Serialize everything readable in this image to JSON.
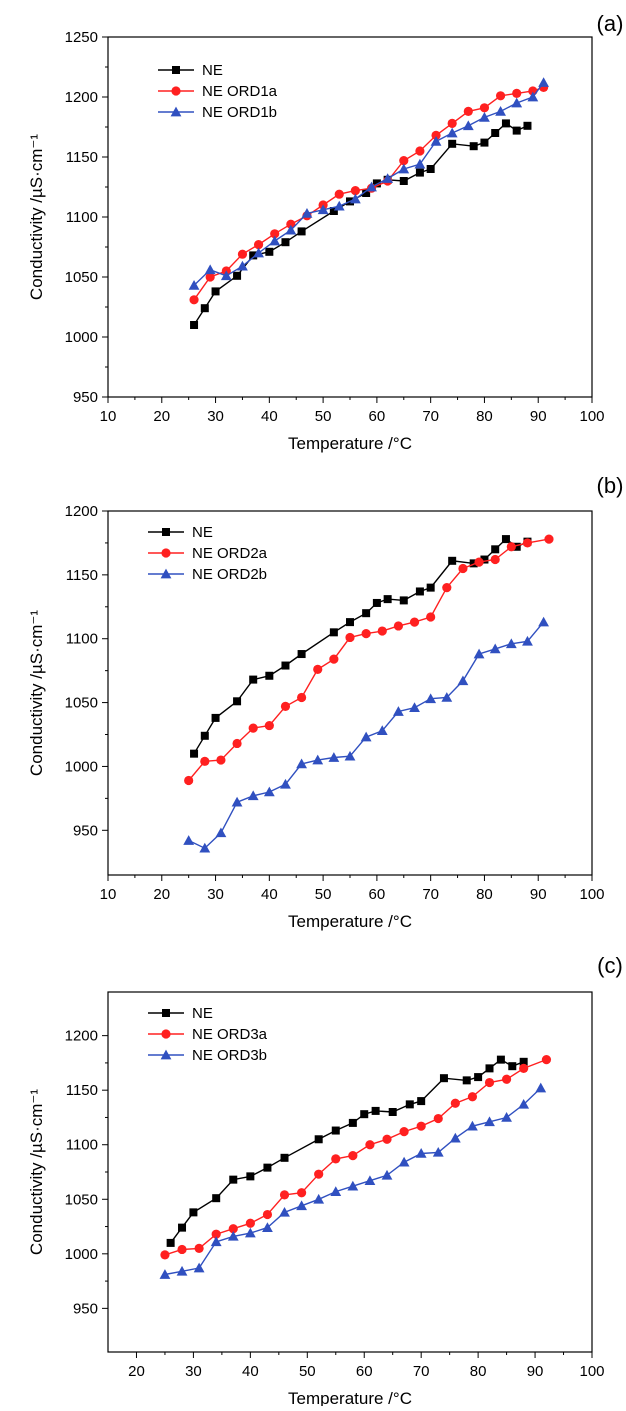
{
  "chart_data": [
    {
      "type": "line",
      "panel_label": "(a)",
      "xlabel": "Temperature /°C",
      "ylabel": "Conductivity /µS·cm⁻¹",
      "xlim": [
        10,
        100
      ],
      "ylim": [
        950,
        1250
      ],
      "xticks": [
        10,
        20,
        30,
        40,
        50,
        60,
        70,
        80,
        90,
        100
      ],
      "yticks": [
        950,
        1000,
        1050,
        1100,
        1150,
        1200,
        1250
      ],
      "grid": false,
      "legend_position": "top-left",
      "series": [
        {
          "name": "NE",
          "color": "#000000",
          "marker": "square",
          "x": [
            26,
            28,
            30,
            34,
            37,
            40,
            43,
            46,
            52,
            55,
            58,
            60,
            62,
            65,
            68,
            70,
            74,
            78,
            80,
            82,
            84,
            86,
            88
          ],
          "y": [
            1010,
            1024,
            1038,
            1051,
            1068,
            1071,
            1079,
            1088,
            1105,
            1113,
            1120,
            1128,
            1131,
            1130,
            1137,
            1140,
            1161,
            1159,
            1162,
            1170,
            1178,
            1172,
            1176
          ]
        },
        {
          "name": "NE ORD1a",
          "color": "#ff2020",
          "marker": "circle",
          "x": [
            26,
            29,
            32,
            35,
            38,
            41,
            44,
            47,
            50,
            53,
            56,
            59,
            62,
            65,
            68,
            71,
            74,
            77,
            80,
            83,
            86,
            89,
            91
          ],
          "y": [
            1031,
            1050,
            1055,
            1069,
            1077,
            1086,
            1094,
            1101,
            1110,
            1119,
            1122,
            1124,
            1130,
            1147,
            1155,
            1168,
            1178,
            1188,
            1191,
            1201,
            1203,
            1205,
            1208
          ]
        },
        {
          "name": "NE ORD1b",
          "color": "#3050c0",
          "marker": "triangle",
          "x": [
            26,
            29,
            32,
            35,
            38,
            41,
            44,
            47,
            50,
            53,
            56,
            59,
            62,
            65,
            68,
            71,
            74,
            77,
            80,
            83,
            86,
            89,
            91
          ],
          "y": [
            1043,
            1056,
            1051,
            1059,
            1070,
            1080,
            1089,
            1103,
            1106,
            1109,
            1115,
            1125,
            1132,
            1140,
            1144,
            1163,
            1170,
            1176,
            1183,
            1188,
            1195,
            1200,
            1212
          ]
        }
      ]
    },
    {
      "type": "line",
      "panel_label": "(b)",
      "xlabel": "Temperature /°C",
      "ylabel": "Conductivity /µS·cm⁻¹",
      "xlim": [
        10,
        100
      ],
      "ylim": [
        915,
        1200
      ],
      "xticks": [
        10,
        20,
        30,
        40,
        50,
        60,
        70,
        80,
        90,
        100
      ],
      "yticks": [
        950,
        1000,
        1050,
        1100,
        1150,
        1200
      ],
      "grid": false,
      "legend_position": "top-left",
      "series": [
        {
          "name": "NE",
          "color": "#000000",
          "marker": "square",
          "x": [
            26,
            28,
            30,
            34,
            37,
            40,
            43,
            46,
            52,
            55,
            58,
            60,
            62,
            65,
            68,
            70,
            74,
            78,
            80,
            82,
            84,
            86,
            88
          ],
          "y": [
            1010,
            1024,
            1038,
            1051,
            1068,
            1071,
            1079,
            1088,
            1105,
            1113,
            1120,
            1128,
            1131,
            1130,
            1137,
            1140,
            1161,
            1159,
            1162,
            1170,
            1178,
            1172,
            1176
          ]
        },
        {
          "name": "NE ORD2a",
          "color": "#ff2020",
          "marker": "circle",
          "x": [
            25,
            28,
            31,
            34,
            37,
            40,
            43,
            46,
            49,
            52,
            55,
            58,
            61,
            64,
            67,
            70,
            73,
            76,
            79,
            82,
            85,
            88,
            92
          ],
          "y": [
            989,
            1004,
            1005,
            1018,
            1030,
            1032,
            1047,
            1054,
            1076,
            1084,
            1101,
            1104,
            1106,
            1110,
            1113,
            1117,
            1140,
            1155,
            1160,
            1162,
            1172,
            1175,
            1178
          ]
        },
        {
          "name": "NE ORD2b",
          "color": "#3050c0",
          "marker": "triangle",
          "x": [
            25,
            28,
            31,
            34,
            37,
            40,
            43,
            46,
            49,
            52,
            55,
            58,
            61,
            64,
            67,
            70,
            73,
            76,
            79,
            82,
            85,
            88,
            91
          ],
          "y": [
            942,
            936,
            948,
            972,
            977,
            980,
            986,
            1002,
            1005,
            1007,
            1008,
            1023,
            1028,
            1043,
            1046,
            1053,
            1054,
            1067,
            1088,
            1092,
            1096,
            1098,
            1113
          ]
        }
      ]
    },
    {
      "type": "line",
      "panel_label": "(c)",
      "xlabel": "Temperature /°C",
      "ylabel": "Conductivity /µS·cm⁻¹",
      "xlim": [
        15,
        100
      ],
      "ylim": [
        910,
        1240
      ],
      "xticks": [
        20,
        30,
        40,
        50,
        60,
        70,
        80,
        90,
        100
      ],
      "yticks": [
        950,
        1000,
        1050,
        1100,
        1150,
        1200
      ],
      "grid": false,
      "legend_position": "top-left",
      "series": [
        {
          "name": "NE",
          "color": "#000000",
          "marker": "square",
          "x": [
            26,
            28,
            30,
            34,
            37,
            40,
            43,
            46,
            52,
            55,
            58,
            60,
            62,
            65,
            68,
            70,
            74,
            78,
            80,
            82,
            84,
            86,
            88
          ],
          "y": [
            1010,
            1024,
            1038,
            1051,
            1068,
            1071,
            1079,
            1088,
            1105,
            1113,
            1120,
            1128,
            1131,
            1130,
            1137,
            1140,
            1161,
            1159,
            1162,
            1170,
            1178,
            1172,
            1176
          ]
        },
        {
          "name": "NE ORD3a",
          "color": "#ff2020",
          "marker": "circle",
          "x": [
            25,
            28,
            31,
            34,
            37,
            40,
            43,
            46,
            49,
            52,
            55,
            58,
            61,
            64,
            67,
            70,
            73,
            76,
            79,
            82,
            85,
            88,
            92
          ],
          "y": [
            999,
            1004,
            1005,
            1018,
            1023,
            1028,
            1036,
            1054,
            1056,
            1073,
            1087,
            1090,
            1100,
            1105,
            1112,
            1117,
            1124,
            1138,
            1144,
            1157,
            1160,
            1170,
            1178
          ]
        },
        {
          "name": "NE ORD3b",
          "color": "#3050c0",
          "marker": "triangle",
          "x": [
            25,
            28,
            31,
            34,
            37,
            40,
            43,
            46,
            49,
            52,
            55,
            58,
            61,
            64,
            67,
            70,
            73,
            76,
            79,
            82,
            85,
            88,
            91
          ],
          "y": [
            981,
            984,
            987,
            1011,
            1016,
            1019,
            1024,
            1038,
            1044,
            1050,
            1057,
            1062,
            1067,
            1072,
            1084,
            1092,
            1093,
            1106,
            1117,
            1121,
            1125,
            1137,
            1152
          ]
        }
      ]
    }
  ]
}
